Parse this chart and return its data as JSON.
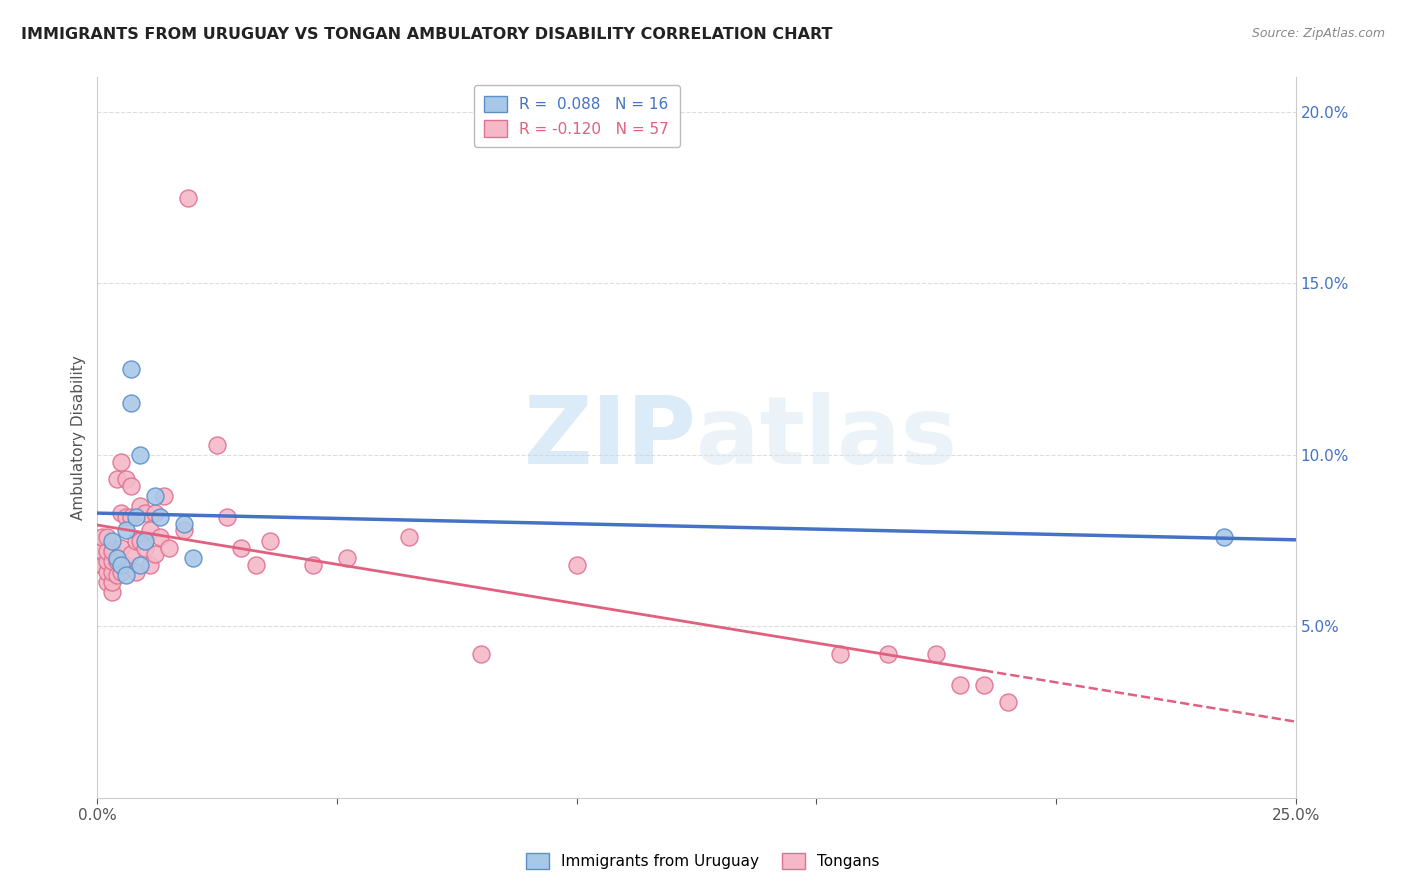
{
  "title": "IMMIGRANTS FROM URUGUAY VS TONGAN AMBULATORY DISABILITY CORRELATION CHART",
  "source": "Source: ZipAtlas.com",
  "ylabel": "Ambulatory Disability",
  "xlim": [
    0.0,
    0.25
  ],
  "ylim": [
    0.0,
    0.21
  ],
  "x_ticks": [
    0.0,
    0.05,
    0.1,
    0.15,
    0.2,
    0.25
  ],
  "x_tick_labels": [
    "0.0%",
    "",
    "",
    "",
    "",
    "25.0%"
  ],
  "y_ticks_right": [
    0.05,
    0.1,
    0.15,
    0.2
  ],
  "y_tick_labels_right": [
    "5.0%",
    "10.0%",
    "15.0%",
    "20.0%"
  ],
  "watermark_zip": "ZIP",
  "watermark_atlas": "atlas",
  "blue_color": "#a8c8e8",
  "pink_color": "#f4b8c8",
  "blue_edge_color": "#5b8fc9",
  "pink_edge_color": "#e07090",
  "blue_line_color": "#4472c4",
  "pink_line_color": "#e06080",
  "uruguay_points_x": [
    0.003,
    0.004,
    0.005,
    0.006,
    0.006,
    0.007,
    0.007,
    0.008,
    0.009,
    0.009,
    0.01,
    0.012,
    0.013,
    0.018,
    0.02,
    0.235
  ],
  "uruguay_points_y": [
    0.075,
    0.07,
    0.068,
    0.065,
    0.078,
    0.125,
    0.115,
    0.082,
    0.068,
    0.1,
    0.075,
    0.088,
    0.082,
    0.08,
    0.07,
    0.076
  ],
  "tongan_points_x": [
    0.001,
    0.001,
    0.001,
    0.002,
    0.002,
    0.002,
    0.002,
    0.002,
    0.003,
    0.003,
    0.003,
    0.003,
    0.003,
    0.004,
    0.004,
    0.004,
    0.005,
    0.005,
    0.005,
    0.005,
    0.006,
    0.006,
    0.006,
    0.007,
    0.007,
    0.007,
    0.008,
    0.008,
    0.009,
    0.009,
    0.01,
    0.01,
    0.011,
    0.011,
    0.012,
    0.012,
    0.013,
    0.014,
    0.015,
    0.018,
    0.019,
    0.025,
    0.027,
    0.03,
    0.033,
    0.036,
    0.045,
    0.052,
    0.065,
    0.08,
    0.1,
    0.155,
    0.165,
    0.175,
    0.18,
    0.185,
    0.19
  ],
  "tongan_points_y": [
    0.068,
    0.072,
    0.076,
    0.063,
    0.066,
    0.069,
    0.072,
    0.076,
    0.06,
    0.063,
    0.066,
    0.069,
    0.072,
    0.065,
    0.069,
    0.093,
    0.066,
    0.073,
    0.083,
    0.098,
    0.068,
    0.082,
    0.093,
    0.071,
    0.082,
    0.091,
    0.066,
    0.075,
    0.075,
    0.085,
    0.073,
    0.083,
    0.068,
    0.078,
    0.071,
    0.083,
    0.076,
    0.088,
    0.073,
    0.078,
    0.175,
    0.103,
    0.082,
    0.073,
    0.068,
    0.075,
    0.068,
    0.07,
    0.076,
    0.042,
    0.068,
    0.042,
    0.042,
    0.042,
    0.033,
    0.033,
    0.028
  ]
}
